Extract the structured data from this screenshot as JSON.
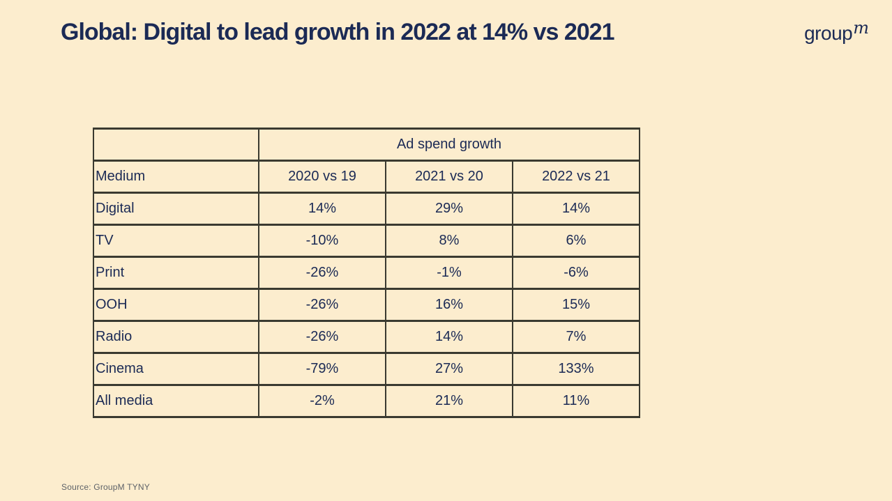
{
  "slide": {
    "title": "Global: Digital to lead growth in 2022 at 14% vs 2021",
    "source": "Source: GroupM TYNY",
    "logo": {
      "text": "group",
      "superscript": "m"
    }
  },
  "colors": {
    "background": "#FCEDCE",
    "navy_text": "#1B2A55",
    "table_border": "#3A3A30",
    "source_text": "#5E6268"
  },
  "table": {
    "group_header": "Ad spend growth",
    "columns": [
      "Medium",
      "2020 vs 19",
      "2021 vs 20",
      "2022 vs 21"
    ],
    "rows": [
      {
        "medium": "Digital",
        "values": [
          "14%",
          "29%",
          "14%"
        ]
      },
      {
        "medium": "TV",
        "values": [
          "-10%",
          "8%",
          "6%"
        ]
      },
      {
        "medium": "Print",
        "values": [
          "-26%",
          "-1%",
          "-6%"
        ]
      },
      {
        "medium": "OOH",
        "values": [
          "-26%",
          "16%",
          "15%"
        ]
      },
      {
        "medium": "Radio",
        "values": [
          "-26%",
          "14%",
          "7%"
        ]
      },
      {
        "medium": "Cinema",
        "values": [
          "-79%",
          "27%",
          "133%"
        ]
      },
      {
        "medium": "All media",
        "values": [
          "-2%",
          "21%",
          "11%"
        ]
      }
    ]
  },
  "chart_data": {
    "type": "table",
    "title": "Global: Digital to lead growth in 2022 at 14% vs 2021",
    "group_header": "Ad spend growth",
    "categories": [
      "Digital",
      "TV",
      "Print",
      "OOH",
      "Radio",
      "Cinema",
      "All media"
    ],
    "series": [
      {
        "name": "2020 vs 19",
        "unit": "%",
        "values": [
          14,
          -10,
          -26,
          -26,
          -26,
          -79,
          -2
        ]
      },
      {
        "name": "2021 vs 20",
        "unit": "%",
        "values": [
          29,
          8,
          -1,
          16,
          14,
          27,
          21
        ]
      },
      {
        "name": "2022 vs 21",
        "unit": "%",
        "values": [
          14,
          6,
          -6,
          15,
          7,
          133,
          11
        ]
      }
    ],
    "source": "Source: GroupM TYNY"
  }
}
